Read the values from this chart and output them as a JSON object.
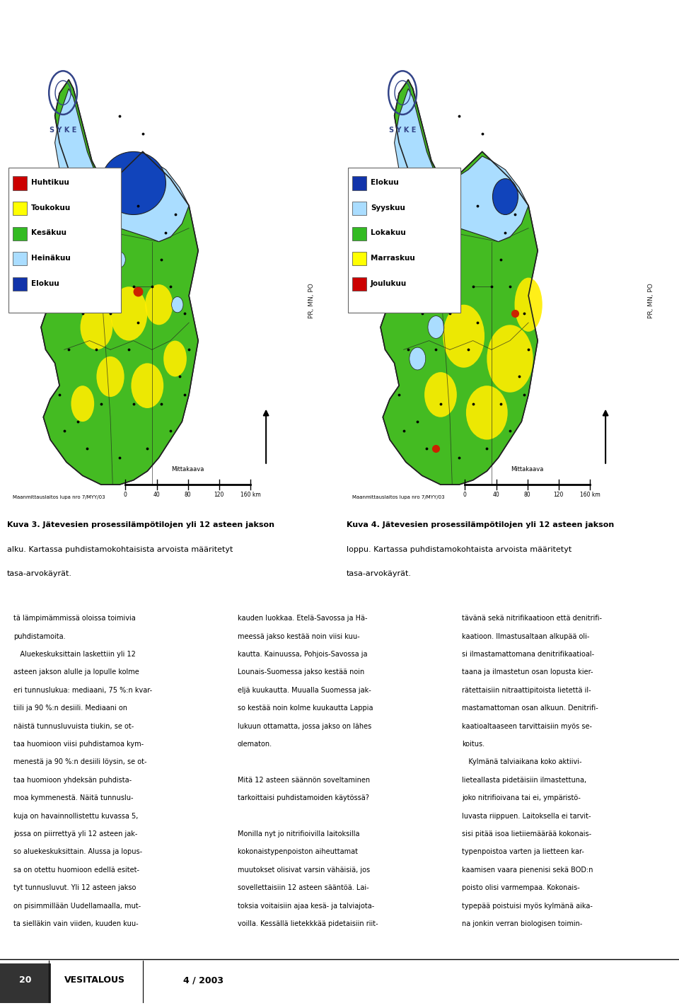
{
  "page_background": "#ffffff",
  "page_width": 9.6,
  "page_height": 14.25,
  "dpi": 100,
  "map1_caption": "Kuva 3. Jätevesien prosessilämpötilojen yli 12 asteen jakson\nalku. Kartassa puhdistamokohtaisista arvoista määritetyt\ntasa-arvokäyrät.",
  "map2_caption": "Kuva 4. Jätevesien prosessilämpötilojen yli 12 asteen jakson\nloppu. Kartassa puhdistamokohtaista arvoista määritetyt\ntasa-arvokäyrät.",
  "map1_legend": [
    {
      "color": "#cc0000",
      "label": "Huhtikuu"
    },
    {
      "color": "#ffff00",
      "label": "Toukokuu"
    },
    {
      "color": "#33bb22",
      "label": "Kesäkuu"
    },
    {
      "color": "#aaddff",
      "label": "Heinäkuu"
    },
    {
      "color": "#1133aa",
      "label": "Elokuu"
    }
  ],
  "map2_legend": [
    {
      "color": "#1133aa",
      "label": "Elokuu"
    },
    {
      "color": "#aaddff",
      "label": "Syyskuu"
    },
    {
      "color": "#33bb22",
      "label": "Lokakuu"
    },
    {
      "color": "#ffff00",
      "label": "Marraskuu"
    },
    {
      "color": "#cc0000",
      "label": "Joulukuu"
    }
  ],
  "body_text_col1": "tä lämpimämmissä oloissa toimivia\npuhdistamoita.\n   Aluekeskuksittain laskettiin yli 12\nasteen jakson alulle ja lopulle kolme\neri tunnuslukua: mediaani, 75 %:n kvar-\ntiili ja 90 %:n desiili. Mediaani on\nnäistä tunnusluvuista tiukin, se ot-\ntaa huomioon viisi puhdistamoa kym-\nmenestä ja 90 %:n desiili löysin, se ot-\ntaa huomioon yhdeksän puhdista-\nmoa kymmenestä. Näitä tunnuslu-\nkuja on havainnollistettu kuvassa 5,\njossa on piirrettyä yli 12 asteen jak-\nso aluekeskuksittain. Alussa ja lopus-\nsa on otettu huomioon edellä esitet-\ntyt tunnusluvut. Yli 12 asteen jakso\non pisimmillään Uudellamaalla, mut-\nta sielläkin vain viiden, kuuden kuu-",
  "body_text_col2": "kauden luokkaa. Etelä-Savossa ja Hä-\nmeessä jakso kestää noin viisi kuu-\nkautta. Kainuussa, Pohjois-Savossa ja\nLounais-Suomessa jakso kestää noin\neljä kuukautta. Muualla Suomessa jak-\nso kestää noin kolme kuukautta Lappia\nlukuun ottamatta, jossa jakso on lähes\nolematon.\n\nMitä 12 asteen säännön soveltaminen\ntarkoittaisi puhdistamoiden käytössä?\n\nMonilla nyt jo nitrifioivilla laitoksilla\nkokonaistypenpoiston aiheuttamat\nmuutokset olisivat varsin vähäisiä, jos\nsovellettaisiin 12 asteen sääntöä. Lai-\ntoksia voitaisiin ajaa kesä- ja talviajota-\nvoilla. Kessällä lietekkkää pidetaisiin riit-",
  "body_text_col3": "tävänä sekä nitrifikaatioon että denitrifi-\nkaatioon. Ilmastusaltaan alkupää oli-\nsi ilmastamattomana denitrifikaatioal-\ntaana ja ilmastetun osan lopusta kier-\nrätettaisiin nitraattipitoista lietettä il-\nmastamattoman osan alkuun. Denitrifi-\nkaatioaltaaseen tarvittaisiin myös se-\nkoitus.\n   Kylmänä talviaikana koko aktiivi-\nlieteallasta pidetäisiin ilmastettuna,\njoko nitrifioivana tai ei, ympäristö-\nluvasta riippuen. Laitoksella ei tarvit-\nsisi pitää isoa lietiiemäärää kokonais-\ntypenpoistoa varten ja lietteen kar-\nkaamisen vaara pienenisi sekä BOD:n\npoisto olisi varmempaa. Kokonais-\ntypepää poistuisi myös kylmänä aika-\nna jonkin verran biologisen toimin-",
  "color_light_blue": "#aaddff",
  "color_green": "#44bb22",
  "color_yellow": "#ffee00",
  "color_dark_blue": "#1144bb",
  "color_red": "#cc2200",
  "color_sea": "#ddeeff",
  "color_border": "#222222"
}
